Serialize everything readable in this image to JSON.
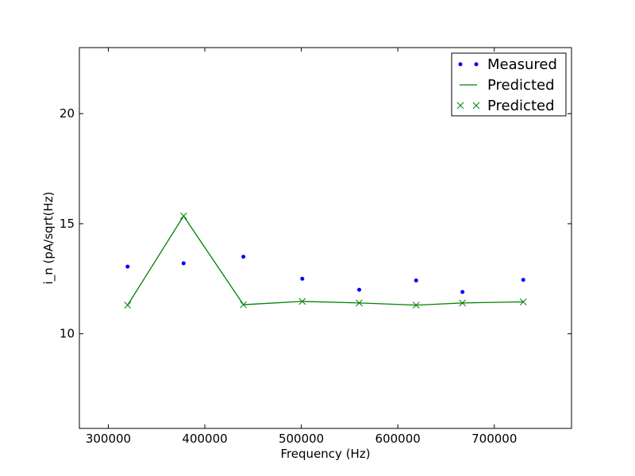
{
  "chart_data": {
    "type": "line",
    "title": "",
    "xlabel": "Frequency (Hz)",
    "ylabel": "i_n (pA/sqrt(Hz)",
    "xlim": [
      270000,
      780000
    ],
    "ylim": [
      5.7,
      23.0
    ],
    "xticks": [
      300000,
      400000,
      500000,
      600000,
      700000
    ],
    "xtick_labels": [
      "300000",
      "400000",
      "500000",
      "600000",
      "700000"
    ],
    "yticks": [
      10,
      15,
      20
    ],
    "ytick_labels": [
      "10",
      "15",
      "20"
    ],
    "grid": false,
    "legend_position": "top-right",
    "colors": {
      "measured": "#0000ff",
      "predicted": "#008000"
    },
    "series": [
      {
        "name": "Measured",
        "style": "points",
        "x": [
          320000,
          378000,
          440000,
          501000,
          560000,
          619000,
          667000,
          730000
        ],
        "y": [
          13.05,
          13.2,
          13.5,
          12.5,
          12.0,
          12.42,
          11.9,
          12.45
        ]
      },
      {
        "name": "Predicted",
        "style": "line",
        "x": [
          320000,
          378000,
          440000,
          501000,
          560000,
          619000,
          667000,
          730000
        ],
        "y": [
          11.3,
          15.35,
          11.32,
          11.47,
          11.4,
          11.3,
          11.4,
          11.45
        ]
      },
      {
        "name": "Predicted",
        "style": "x-markers",
        "x": [
          320000,
          378000,
          440000,
          501000,
          560000,
          619000,
          667000,
          730000
        ],
        "y": [
          11.3,
          15.35,
          11.32,
          11.47,
          11.4,
          11.3,
          11.4,
          11.45
        ]
      }
    ]
  }
}
